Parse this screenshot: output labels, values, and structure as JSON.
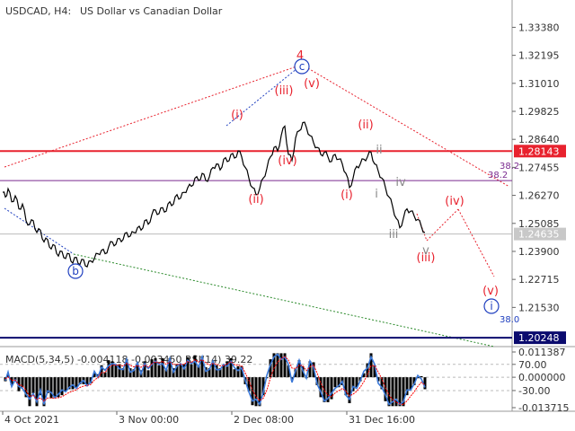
{
  "header": {
    "symbol": "USDCAD, H4:",
    "description": "US Dollar vs Canadian Dollar"
  },
  "indicator": {
    "label": "MACD(5,34,5) -0.004118 -0.003450 RSI(14) 39.22"
  },
  "colors": {
    "price_line": "#000000",
    "red": "#e8222e",
    "blue": "#1f3fbf",
    "purple": "#7a2a8f",
    "green": "#2a8a2a",
    "grid_label": "#333333",
    "macd_hist": "#000000",
    "signal": "#ff0000",
    "rsi": "#3a78d8",
    "badge_red": "#e8222e",
    "badge_navy": "#0b0b6e",
    "badge_gray": "#c8c8c8"
  },
  "chart_data": {
    "type": "line",
    "title": "USDCAD, H4: US Dollar vs Canadian Dollar",
    "x_ticks": [
      "4 Oct 2021",
      "3 Nov 00:00",
      "2 Dec 08:00",
      "31 Dec 16:00"
    ],
    "y_ticks": [
      "1.33380",
      "1.32195",
      "1.31010",
      "1.29825",
      "1.28640",
      "1.27455",
      "1.26270",
      "1.25085",
      "1.23900",
      "1.22715",
      "1.21530"
    ],
    "ylim": [
      1.201,
      1.337
    ],
    "price_series": [
      [
        0,
        1.264
      ],
      [
        3,
        1.262
      ],
      [
        6,
        1.2655
      ],
      [
        10,
        1.26
      ],
      [
        14,
        1.2625
      ],
      [
        18,
        1.257
      ],
      [
        22,
        1.259
      ],
      [
        26,
        1.252
      ],
      [
        30,
        1.2505
      ],
      [
        34,
        1.252
      ],
      [
        38,
        1.247
      ],
      [
        42,
        1.248
      ],
      [
        46,
        1.243
      ],
      [
        50,
        1.244
      ],
      [
        54,
        1.24
      ],
      [
        58,
        1.2415
      ],
      [
        62,
        1.237
      ],
      [
        66,
        1.239
      ],
      [
        70,
        1.236
      ],
      [
        74,
        1.238
      ],
      [
        78,
        1.234
      ],
      [
        82,
        1.2365
      ],
      [
        86,
        1.2335
      ],
      [
        90,
        1.2355
      ],
      [
        94,
        1.2325
      ],
      [
        98,
        1.235
      ],
      [
        102,
        1.236
      ],
      [
        106,
        1.238
      ],
      [
        110,
        1.2395
      ],
      [
        114,
        1.238
      ],
      [
        118,
        1.241
      ],
      [
        122,
        1.243
      ],
      [
        126,
        1.242
      ],
      [
        130,
        1.2445
      ],
      [
        134,
        1.244
      ],
      [
        138,
        1.247
      ],
      [
        142,
        1.2455
      ],
      [
        146,
        1.247
      ],
      [
        150,
        1.249
      ],
      [
        154,
        1.248
      ],
      [
        158,
        1.252
      ],
      [
        162,
        1.2505
      ],
      [
        166,
        1.2545
      ],
      [
        170,
        1.2565
      ],
      [
        174,
        1.255
      ],
      [
        178,
        1.2575
      ],
      [
        182,
        1.256
      ],
      [
        186,
        1.26
      ],
      [
        190,
        1.259
      ],
      [
        194,
        1.263
      ],
      [
        198,
        1.2615
      ],
      [
        202,
        1.264
      ],
      [
        206,
        1.266
      ],
      [
        210,
        1.2665
      ],
      [
        214,
        1.27
      ],
      [
        218,
        1.269
      ],
      [
        222,
        1.272
      ],
      [
        226,
        1.269
      ],
      [
        230,
        1.2705
      ],
      [
        234,
        1.2745
      ],
      [
        238,
        1.276
      ],
      [
        242,
        1.2735
      ],
      [
        246,
        1.278
      ],
      [
        250,
        1.277
      ],
      [
        254,
        1.28
      ],
      [
        258,
        1.2785
      ],
      [
        262,
        1.2815
      ],
      [
        266,
        1.279
      ],
      [
        270,
        1.2745
      ],
      [
        274,
        1.27
      ],
      [
        278,
        1.266
      ],
      [
        282,
        1.263
      ],
      [
        286,
        1.2655
      ],
      [
        290,
        1.27
      ],
      [
        294,
        1.274
      ],
      [
        298,
        1.279
      ],
      [
        302,
        1.283
      ],
      [
        306,
        1.2815
      ],
      [
        310,
        1.288
      ],
      [
        314,
        1.292
      ],
      [
        318,
        1.28
      ],
      [
        322,
        1.2775
      ],
      [
        326,
        1.287
      ],
      [
        330,
        1.29
      ],
      [
        334,
        1.2935
      ],
      [
        338,
        1.2915
      ],
      [
        342,
        1.288
      ],
      [
        346,
        1.285
      ],
      [
        350,
        1.283
      ],
      [
        354,
        1.28
      ],
      [
        358,
        1.281
      ],
      [
        362,
        1.279
      ],
      [
        366,
        1.277
      ],
      [
        370,
        1.28
      ],
      [
        374,
        1.278
      ],
      [
        378,
        1.276
      ],
      [
        382,
        1.272
      ],
      [
        386,
        1.266
      ],
      [
        390,
        1.27
      ],
      [
        394,
        1.275
      ],
      [
        398,
        1.276
      ],
      [
        402,
        1.278
      ],
      [
        406,
        1.279
      ],
      [
        410,
        1.281
      ],
      [
        414,
        1.276
      ],
      [
        418,
        1.273
      ],
      [
        422,
        1.27
      ],
      [
        426,
        1.266
      ],
      [
        430,
        1.262
      ],
      [
        434,
        1.258
      ],
      [
        438,
        1.253
      ],
      [
        442,
        1.249
      ],
      [
        446,
        1.253
      ],
      [
        450,
        1.257
      ],
      [
        454,
        1.256
      ],
      [
        458,
        1.254
      ],
      [
        462,
        1.2525
      ],
      [
        466,
        1.2495
      ],
      [
        470,
        1.247
      ]
    ],
    "horizontal_levels": [
      {
        "price": 1.28143,
        "label": "1.28143",
        "color": "red"
      },
      {
        "price": 1.26895,
        "label": "38.2",
        "color": "purple"
      },
      {
        "price": 1.24635,
        "label": "1.24635",
        "color": "gray"
      },
      {
        "price": 1.20248,
        "label": "1.20248",
        "color": "navy"
      }
    ],
    "annotations": [
      {
        "text": "4",
        "color": "red"
      },
      {
        "text": "c",
        "color": "blue",
        "circled": true
      },
      {
        "text": "b",
        "color": "blue",
        "circled": true
      },
      {
        "text": "i",
        "color": "blue",
        "circled": true
      },
      {
        "text": "(i)",
        "color": "red"
      },
      {
        "text": "(ii)",
        "color": "red"
      },
      {
        "text": "(iii)",
        "color": "red"
      },
      {
        "text": "(iv)",
        "color": "red"
      },
      {
        "text": "(v)",
        "color": "red"
      },
      {
        "text": "(i)",
        "color": "red"
      },
      {
        "text": "(ii)",
        "color": "red"
      },
      {
        "text": "(iii)",
        "color": "red"
      },
      {
        "text": "(iv)",
        "color": "red"
      },
      {
        "text": "(v)",
        "color": "red"
      },
      {
        "text": "i",
        "color": "gray"
      },
      {
        "text": "ii",
        "color": "gray"
      },
      {
        "text": "iii",
        "color": "gray"
      },
      {
        "text": "iv",
        "color": "gray"
      },
      {
        "text": "v",
        "color": "gray"
      },
      {
        "text": "38.2",
        "color": "purple"
      },
      {
        "text": "38.0",
        "color": "blue"
      }
    ],
    "indicator_ticks": [
      "0.011387",
      "70.00",
      "0.000000",
      "-30.00",
      "-0.013715"
    ],
    "grid": false,
    "legend": "none"
  }
}
